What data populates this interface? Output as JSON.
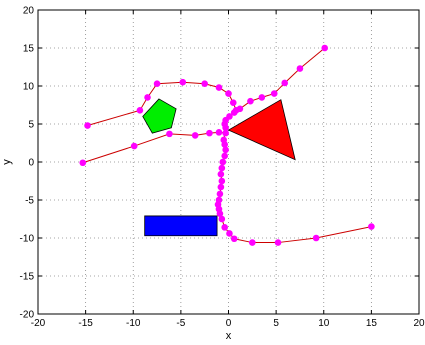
{
  "chart_data": {
    "type": "scatter",
    "title": "",
    "xlabel": "x",
    "ylabel": "y",
    "xlim": [
      -20,
      20
    ],
    "ylim": [
      -20,
      20
    ],
    "xticks": [
      "-20",
      "-15",
      "-10",
      "-5",
      "0",
      "5",
      "10",
      "15",
      "20"
    ],
    "yticks": [
      "-20",
      "-15",
      "-10",
      "-5",
      "0",
      "5",
      "10",
      "15",
      "20"
    ],
    "grid": true,
    "grid_style": "dotted",
    "colors": {
      "path_line": "#cc0000",
      "path_marker": "#ff00ff",
      "triangle": "#ff0000",
      "pentagon": "#00ee00",
      "rectangle": "#0000ff"
    },
    "series": [
      {
        "x": [
          10.1,
          7.5,
          5.9,
          4.8,
          3.5,
          2.3,
          1.2,
          0.6,
          0.1,
          -0.3,
          -0.4,
          -0.3,
          -0.5,
          -0.4,
          -0.3,
          -0.4,
          -0.6,
          -0.7,
          -0.8,
          -0.7,
          -0.8,
          -0.9,
          -1.0,
          -1.1,
          -1.0,
          -0.9,
          -0.7,
          -0.4,
          0.1,
          0.6,
          2.5,
          5.2,
          9.2,
          15.0
        ],
        "y": [
          15.0,
          12.3,
          10.4,
          9.0,
          8.5,
          8.0,
          7.0,
          6.5,
          6.0,
          5.5,
          5.0,
          4.5,
          2.9,
          2.3,
          1.6,
          0.8,
          0.0,
          -0.8,
          -1.6,
          -2.5,
          -3.3,
          -4.2,
          -5.0,
          -5.6,
          -6.2,
          -6.8,
          -7.5,
          -8.6,
          -9.4,
          -10.1,
          -10.6,
          -10.6,
          -10.0,
          -8.5
        ]
      },
      {
        "x": [
          -14.8,
          -9.3,
          -8.5,
          -7.5,
          -4.8,
          -2.5,
          -1.0,
          0.0,
          0.5,
          0.8
        ],
        "y": [
          4.8,
          6.8,
          8.5,
          10.3,
          10.5,
          10.3,
          9.8,
          9.0,
          7.8,
          6.8
        ]
      },
      {
        "x": [
          -15.3,
          -9.9,
          -6.2,
          -3.5,
          -2.0,
          -1.0,
          -0.3
        ],
        "y": [
          -0.1,
          2.1,
          3.7,
          3.5,
          3.8,
          3.9,
          3.8
        ]
      }
    ],
    "shapes": [
      {
        "kind": "triangle",
        "vertices": [
          [
            0.0,
            4.2
          ],
          [
            5.5,
            8.2
          ],
          [
            7.0,
            0.3
          ]
        ]
      },
      {
        "kind": "pentagon",
        "vertices": [
          [
            -7.3,
            8.3
          ],
          [
            -5.5,
            7.0
          ],
          [
            -6.0,
            4.5
          ],
          [
            -8.0,
            3.8
          ],
          [
            -9.0,
            6.0
          ]
        ]
      },
      {
        "kind": "rectangle",
        "vertices": [
          [
            -8.8,
            -7.1
          ],
          [
            -1.2,
            -7.1
          ],
          [
            -1.2,
            -9.7
          ],
          [
            -8.8,
            -9.7
          ]
        ]
      }
    ]
  }
}
